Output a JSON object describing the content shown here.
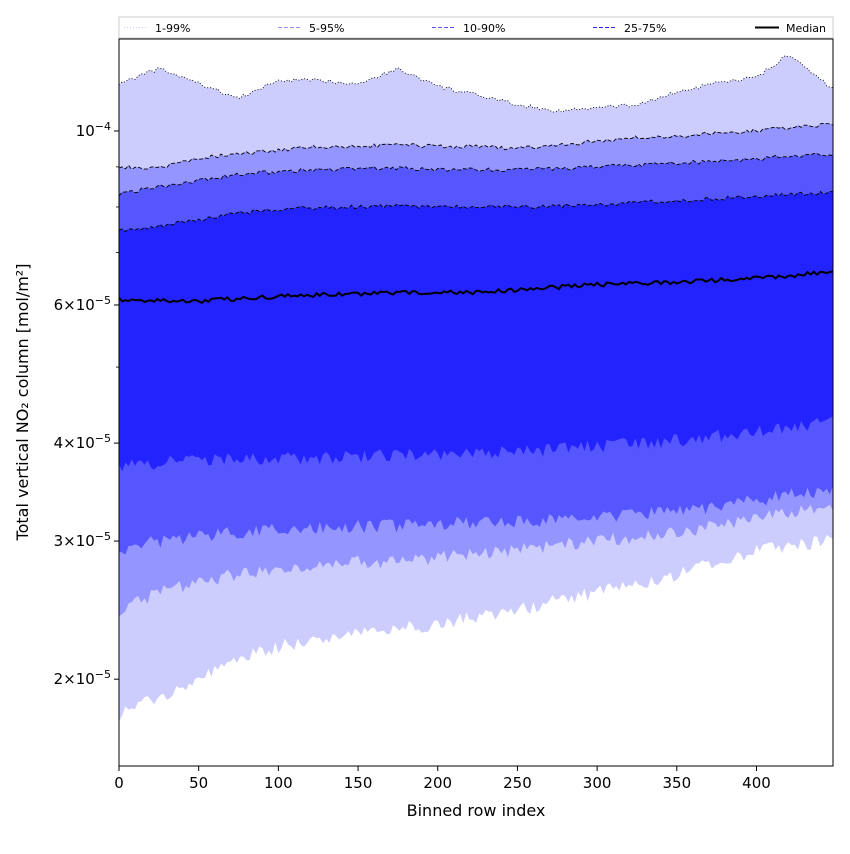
{
  "chart_data": {
    "type": "area",
    "xlabel": "Binned row index",
    "ylabel": "Total vertical NO₂ column [mol/m²]",
    "xlim": [
      0,
      448
    ],
    "ylim": [
      1.55e-05,
      0.000131
    ],
    "yscale": "log",
    "grid": false,
    "legend_placement": "top",
    "x_ticks": [
      0,
      50,
      100,
      150,
      200,
      250,
      300,
      350,
      400
    ],
    "x_tick_labels": [
      "0",
      "50",
      "100",
      "150",
      "200",
      "250",
      "300",
      "350",
      "400"
    ],
    "y_ticks": [
      2e-05,
      3e-05,
      4e-05,
      6e-05,
      0.0001
    ],
    "y_tick_labels": [
      {
        "mantissa": "2",
        "times": "×",
        "base": "10",
        "exponent": "−5"
      },
      {
        "mantissa": "3",
        "times": "×",
        "base": "10",
        "exponent": "−5"
      },
      {
        "mantissa": "4",
        "times": "×",
        "base": "10",
        "exponent": "−5"
      },
      {
        "mantissa": "6",
        "times": "×",
        "base": "10",
        "exponent": "−5"
      },
      {
        "mantissa": "",
        "times": "",
        "base": "10",
        "exponent": "−4"
      }
    ],
    "x": [
      0,
      25,
      50,
      75,
      100,
      125,
      150,
      175,
      200,
      225,
      250,
      275,
      300,
      325,
      350,
      375,
      400,
      420,
      448
    ],
    "bands": [
      {
        "name": "1-99%",
        "color": "#cccdfd",
        "line_color": "#000000",
        "line_style": "dotted",
        "lower": [
          1.8e-05,
          1.9e-05,
          2e-05,
          2.12e-05,
          2.2e-05,
          2.25e-05,
          2.3e-05,
          2.32e-05,
          2.35e-05,
          2.4e-05,
          2.45e-05,
          2.52e-05,
          2.58e-05,
          2.65e-05,
          2.72e-05,
          2.82e-05,
          2.92e-05,
          2.96e-05,
          3e-05
        ],
        "upper": [
          0.000115,
          0.00012,
          0.000115,
          0.00011,
          0.000116,
          0.000116,
          0.000115,
          0.00012,
          0.000114,
          0.000111,
          0.000108,
          0.000106,
          0.000107,
          0.000108,
          0.000112,
          0.000115,
          0.000117,
          0.000125,
          0.000113
        ]
      },
      {
        "name": "5-95%",
        "color": "#9495ff",
        "line_color": "#000000",
        "line_style": "dashed",
        "lower": [
          2.45e-05,
          2.58e-05,
          2.66e-05,
          2.73e-05,
          2.76e-05,
          2.8e-05,
          2.82e-05,
          2.83e-05,
          2.86e-05,
          2.88e-05,
          2.92e-05,
          2.96e-05,
          3e-05,
          3.04e-05,
          3.08e-05,
          3.14e-05,
          3.2e-05,
          3.26e-05,
          3.32e-05
        ],
        "upper": [
          9e-05,
          8.95e-05,
          9.25e-05,
          9.35e-05,
          9.45e-05,
          9.55e-05,
          9.55e-05,
          9.6e-05,
          9.55e-05,
          9.55e-05,
          9.5e-05,
          9.6e-05,
          9.7e-05,
          9.8e-05,
          9.85e-05,
          9.95e-05,
          0.0001,
          0.000101,
          0.000102
        ]
      },
      {
        "name": "10-90%",
        "color": "#5656ff",
        "line_color": "#000000",
        "line_style": "dashed",
        "lower": [
          2.93e-05,
          3e-05,
          3.05e-05,
          3.08e-05,
          3.1e-05,
          3.12e-05,
          3.13e-05,
          3.14e-05,
          3.15e-05,
          3.17e-05,
          3.18e-05,
          3.2e-05,
          3.22e-05,
          3.25e-05,
          3.28e-05,
          3.32e-05,
          3.38e-05,
          3.43e-05,
          3.5e-05
        ],
        "upper": [
          8.3e-05,
          8.5e-05,
          8.65e-05,
          8.8e-05,
          8.87e-05,
          8.92e-05,
          8.95e-05,
          8.97e-05,
          8.93e-05,
          8.92e-05,
          8.92e-05,
          8.95e-05,
          9e-05,
          9.05e-05,
          9.1e-05,
          9.15e-05,
          9.22e-05,
          9.28e-05,
          9.35e-05
        ]
      },
      {
        "name": "25-75%",
        "color": "#2323ff",
        "line_color": "#000000",
        "line_style": "dashed",
        "lower": [
          3.72e-05,
          3.78e-05,
          3.8e-05,
          3.82e-05,
          3.82e-05,
          3.83e-05,
          3.84e-05,
          3.86e-05,
          3.86e-05,
          3.87e-05,
          3.9e-05,
          3.93e-05,
          3.96e-05,
          3.99e-05,
          4.03e-05,
          4.08e-05,
          4.15e-05,
          4.2e-05,
          4.27e-05
        ],
        "upper": [
          7.45e-05,
          7.55e-05,
          7.7e-05,
          7.85e-05,
          7.95e-05,
          7.98e-05,
          8e-05,
          8.02e-05,
          8e-05,
          8e-05,
          8e-05,
          8.02e-05,
          8.05e-05,
          8.1e-05,
          8.15e-05,
          8.2e-05,
          8.25e-05,
          8.3e-05,
          8.35e-05
        ]
      }
    ],
    "median": {
      "name": "Median",
      "color": "#000000",
      "values": [
        6.1e-05,
        6.08e-05,
        6.07e-05,
        6.11e-05,
        6.15e-05,
        6.18e-05,
        6.2e-05,
        6.22e-05,
        6.23e-05,
        6.23e-05,
        6.27e-05,
        6.32e-05,
        6.37e-05,
        6.4e-05,
        6.42e-05,
        6.45e-05,
        6.49e-05,
        6.53e-05,
        6.62e-05
      ]
    }
  }
}
